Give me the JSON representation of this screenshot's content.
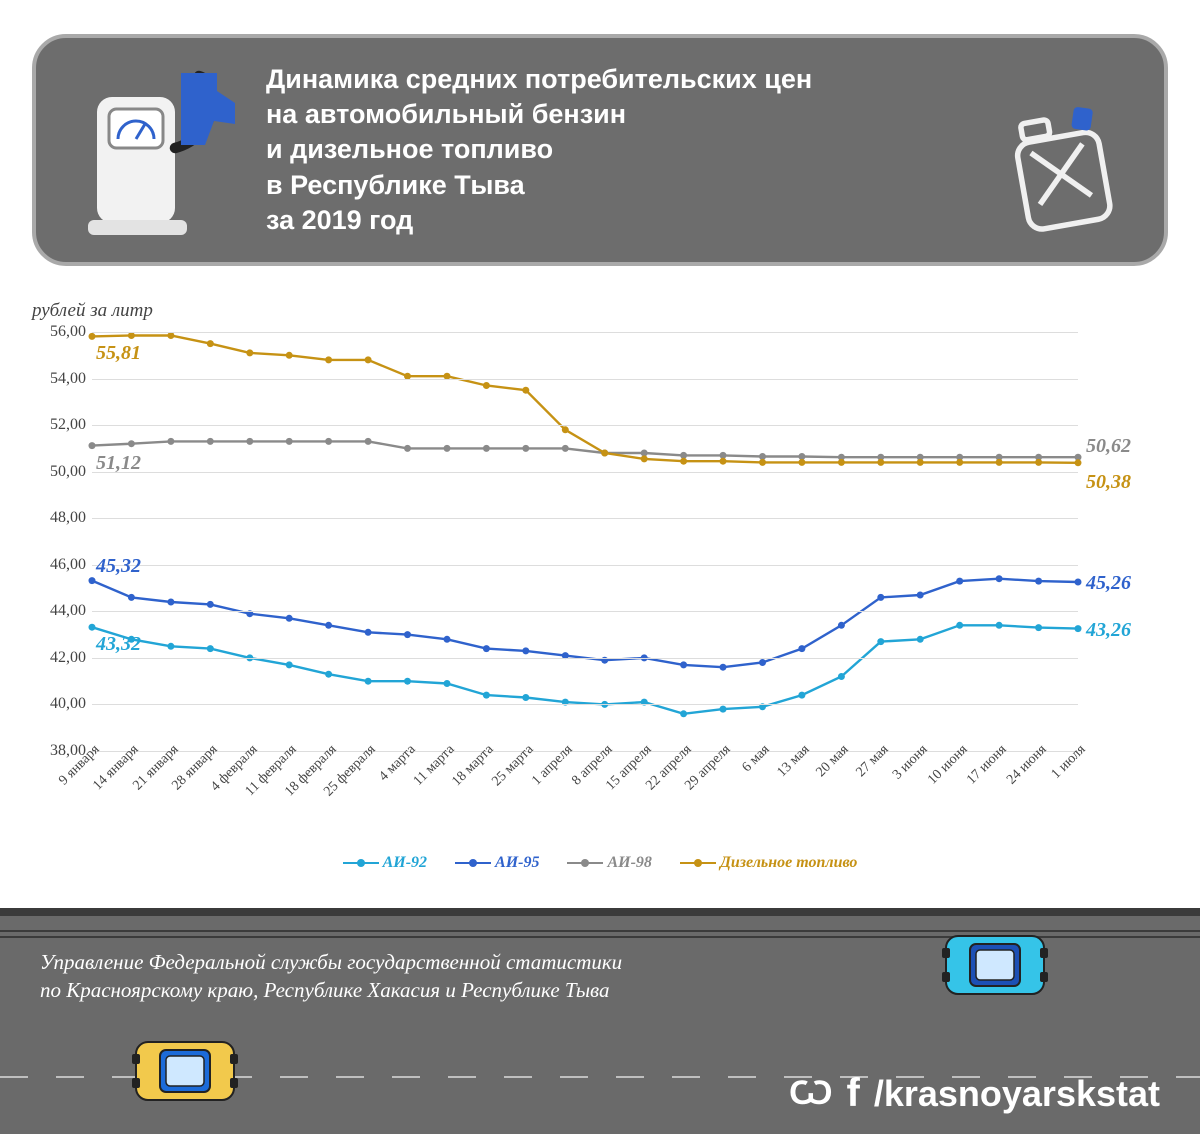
{
  "header": {
    "title": "Динамика средних потребительских цен\nна автомобильный бензин\nи дизельное топливо\nв Республике Тыва\nза 2019 год",
    "banner_bg": "#6d6d6d",
    "banner_border": "#a9a9a9",
    "title_color": "#ffffff",
    "title_fontsize": 27
  },
  "chart": {
    "type": "line",
    "y_axis_title": "рублей за литр",
    "ylim": [
      38,
      56
    ],
    "yticks": [
      38,
      40,
      42,
      44,
      46,
      48,
      50,
      52,
      54,
      56
    ],
    "ytick_format": ",00",
    "grid_color": "#dddddd",
    "axis_color": "#666666",
    "tick_fontsize": 16,
    "xtick_fontsize": 14,
    "marker_radius": 3.5,
    "line_width": 2.4,
    "x_labels": [
      "9 января",
      "14 января",
      "21 января",
      "28 января",
      "4 февраля",
      "11 февраля",
      "18 февраля",
      "25 февраля",
      "4 марта",
      "11 марта",
      "18 марта",
      "25 марта",
      "1 апреля",
      "8 апреля",
      "15 апреля",
      "22 апреля",
      "29 апреля",
      "6 мая",
      "13 мая",
      "20 мая",
      "27 мая",
      "3 июня",
      "10 июня",
      "17 июня",
      "24 июня",
      "1 июля"
    ],
    "series": [
      {
        "key": "ai92",
        "label": "АИ-92",
        "color": "#22a5d6",
        "values": [
          43.32,
          42.8,
          42.5,
          42.4,
          42.0,
          41.7,
          41.3,
          41.0,
          41.0,
          40.9,
          40.4,
          40.3,
          40.1,
          40.0,
          40.1,
          39.6,
          39.8,
          39.9,
          40.4,
          41.2,
          42.7,
          42.8,
          43.4,
          43.4,
          43.3,
          43.26
        ]
      },
      {
        "key": "ai95",
        "label": "АИ-95",
        "color": "#2f62cc",
        "values": [
          45.32,
          44.6,
          44.4,
          44.3,
          43.9,
          43.7,
          43.4,
          43.1,
          43.0,
          42.8,
          42.4,
          42.3,
          42.1,
          41.9,
          42.0,
          41.7,
          41.6,
          41.8,
          42.4,
          43.4,
          44.6,
          44.7,
          45.3,
          45.4,
          45.3,
          45.26
        ]
      },
      {
        "key": "ai98",
        "label": "АИ-98",
        "color": "#8a8a8a",
        "values": [
          51.12,
          51.2,
          51.3,
          51.3,
          51.3,
          51.3,
          51.3,
          51.3,
          51.0,
          51.0,
          51.0,
          51.0,
          51.0,
          50.8,
          50.8,
          50.7,
          50.7,
          50.65,
          50.65,
          50.62,
          50.62,
          50.62,
          50.62,
          50.62,
          50.62,
          50.62
        ]
      },
      {
        "key": "diesel",
        "label": "Дизельное топливо",
        "color": "#c69214",
        "values": [
          55.81,
          55.85,
          55.85,
          55.5,
          55.1,
          55.0,
          54.8,
          54.8,
          54.1,
          54.1,
          53.7,
          53.5,
          51.8,
          50.8,
          50.55,
          50.45,
          50.45,
          50.4,
          50.4,
          50.4,
          50.4,
          50.4,
          50.4,
          50.4,
          50.4,
          50.38
        ]
      }
    ],
    "value_labels": {
      "left": {
        "ai92": "43,32",
        "ai95": "45,32",
        "ai98": "51,12",
        "diesel": "55,81"
      },
      "right": {
        "ai92": "43,26",
        "ai95": "45,26",
        "ai98": "50,62",
        "diesel": "50,38"
      }
    },
    "value_label_fontsize": 20
  },
  "legend": {
    "fontsize": 16,
    "items": [
      {
        "key": "ai92",
        "label": "АИ-92"
      },
      {
        "key": "ai95",
        "label": "АИ-95"
      },
      {
        "key": "ai98",
        "label": "АИ-98"
      },
      {
        "key": "diesel",
        "label": "Дизельное топливо"
      }
    ]
  },
  "footer": {
    "road_bg": "#6a6a6a",
    "road_border": "#3b3b3b",
    "dash_color": "#bfbfbf",
    "text": "Управление Федеральной службы государственной статистики\nпо Красноярскому краю, Республике Хакасия и Республике Тыва",
    "text_fontsize": 21,
    "social_handle": "/krasnoyarskstat",
    "social_fontsize": 36,
    "car1_color": "#f2c94c",
    "car1_accent": "#1c6bd9",
    "car2_color": "#35c4e8",
    "car2_accent": "#1c50b5"
  }
}
